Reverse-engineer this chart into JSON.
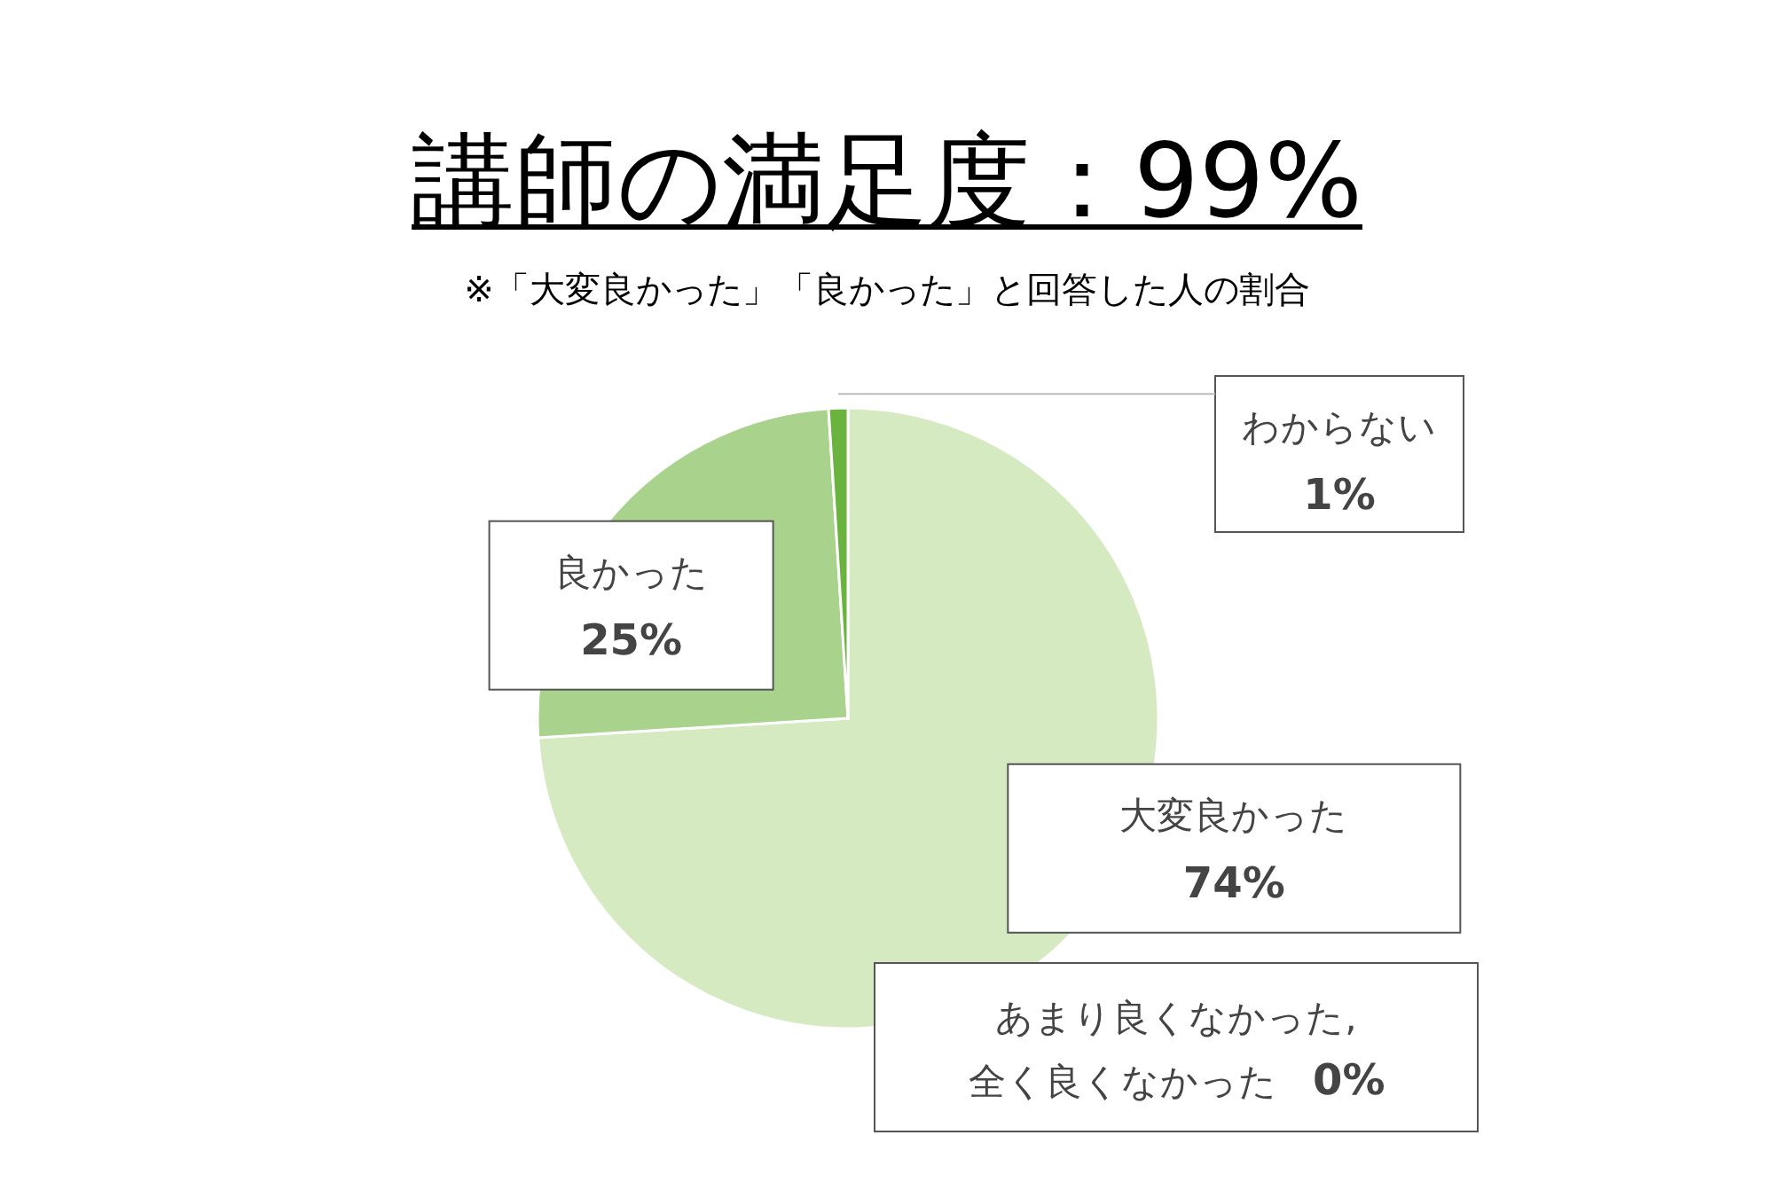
{
  "chart_data": {
    "type": "pie",
    "title": "講師の満足度：99%",
    "subtitle": "※「大変良かった」「良かった」と回答した人の割合",
    "categories": [
      "大変良かった",
      "良かった",
      "わからない",
      "あまり良くなかった,\n全く良くなかった"
    ],
    "values": [
      74,
      25,
      1,
      0
    ],
    "colors": [
      "#d5eac1",
      "#a9d28c",
      "#6bb33f",
      "#4f6b3f"
    ],
    "value_labels": [
      "74%",
      "25%",
      "1%",
      "0%"
    ]
  }
}
